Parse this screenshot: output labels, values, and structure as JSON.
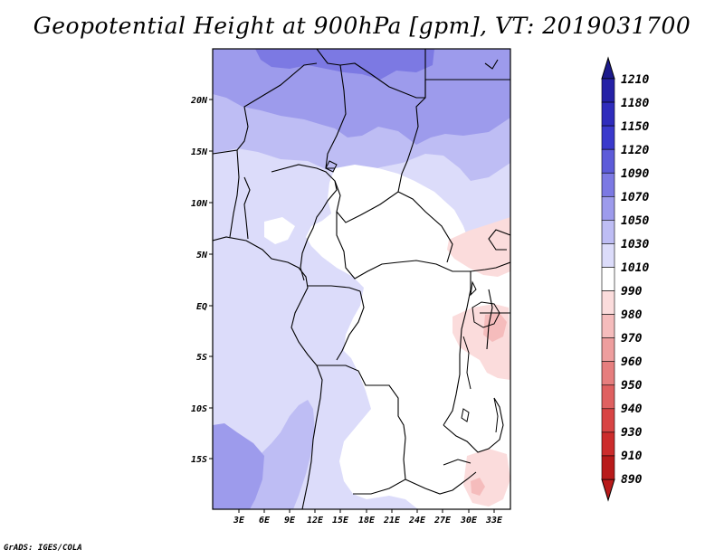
{
  "title": "Geopotential Height at 900hPa [gpm], VT: 2019031700",
  "credit": "GrADS: IGES/COLA",
  "map": {
    "lat_ticks": [
      "20N",
      "15N",
      "10N",
      "5N",
      "EQ",
      "5S",
      "10S",
      "15S"
    ],
    "lon_ticks": [
      "3E",
      "6E",
      "9E",
      "12E",
      "15E",
      "18E",
      "21E",
      "24E",
      "27E",
      "30E",
      "33E"
    ]
  },
  "colorbar": {
    "levels": [
      "1210",
      "1180",
      "1150",
      "1120",
      "1090",
      "1070",
      "1050",
      "1030",
      "1010",
      "990",
      "980",
      "970",
      "960",
      "950",
      "940",
      "930",
      "910",
      "890"
    ],
    "colors": [
      "#1c1a8c",
      "#2521a6",
      "#2f2cbc",
      "#3a39cc",
      "#5d5bd9",
      "#7c79e3",
      "#9d9bec",
      "#bebdf4",
      "#dcdcfa",
      "#ffffff",
      "#fbdcdc",
      "#f5bcbc",
      "#ee9e9e",
      "#e67e7e",
      "#df6060",
      "#d84444",
      "#cc2c2c",
      "#b81a1a"
    ]
  }
}
